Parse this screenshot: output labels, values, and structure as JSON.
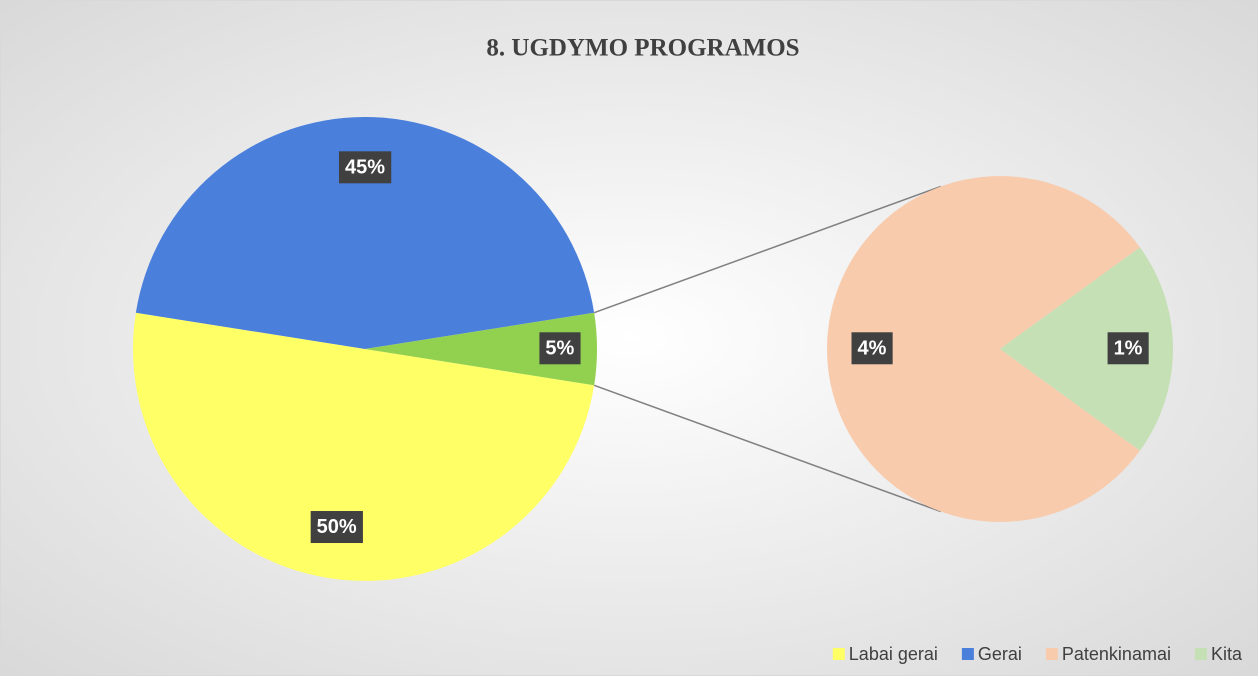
{
  "chart_data": [
    {
      "type": "pie",
      "title": "8. UGDYMO PROGRAMOS",
      "categories": [
        "Labai gerai",
        "Gerai",
        null
      ],
      "values": [
        50,
        45,
        5
      ],
      "value_labels": [
        "50%",
        "45%",
        "5%"
      ],
      "colors": [
        "#ffff66",
        "#4a7fdc",
        "#92d050"
      ]
    },
    {
      "type": "pie",
      "categories": [
        "Patenkinamai",
        "Kita"
      ],
      "values": [
        4,
        1
      ],
      "value_labels": [
        "4%",
        "1%"
      ],
      "colors": [
        "#f8cbad",
        "#c5e0b4"
      ]
    }
  ]
}
